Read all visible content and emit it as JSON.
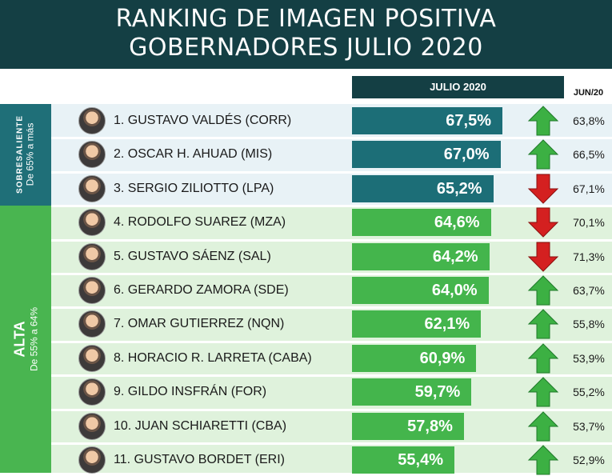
{
  "header": {
    "title_line1": "RANKING DE IMAGEN POSITIVA",
    "title_line2": "GOBERNADORES JULIO 2020"
  },
  "columns": {
    "current": "JULIO 2020",
    "previous": "JUN/20"
  },
  "groups": [
    {
      "label": "SOBRESALIENTE",
      "range": "De 65% a más",
      "color": "#1f6f78"
    },
    {
      "label": "ALTA",
      "range": "De 55% a 64%",
      "color": "#49b550"
    }
  ],
  "colors": {
    "up": "#3cb043",
    "down": "#d42020",
    "header": "#143f44"
  },
  "chart_data": {
    "type": "bar",
    "title": "RANKING DE IMAGEN POSITIVA GOBERNADORES JULIO 2020",
    "xlabel": "",
    "ylabel": "",
    "ylim": [
      0,
      70
    ],
    "categories": [
      "1. GUSTAVO VALDÉS  (CORR)",
      "2. OSCAR H. AHUAD  (MIS)",
      "3. SERGIO ZILIOTTO (LPA)",
      "4. RODOLFO SUAREZ (MZA)",
      "5. GUSTAVO SÁENZ (SAL)",
      "6. GERARDO ZAMORA (SDE)",
      "7. OMAR GUTIERREZ (NQN)",
      "8. HORACIO R. LARRETA (CABA)",
      "9. GILDO INSFRÁN (FOR)",
      "10. JUAN SCHIARETTI (CBA)",
      "11. GUSTAVO BORDET (ERI)"
    ],
    "series": [
      {
        "name": "JULIO 2020",
        "values": [
          67.5,
          67.0,
          65.2,
          64.6,
          64.2,
          64.0,
          62.1,
          60.9,
          59.7,
          57.8,
          55.4
        ],
        "labels": [
          "67,5%",
          "67,0%",
          "65,2%",
          "64,6%",
          "64,2%",
          "64,0%",
          "62,1%",
          "60,9%",
          "59,7%",
          "57,8%",
          "55,4%"
        ]
      },
      {
        "name": "JUN/20",
        "values": [
          63.8,
          66.5,
          67.1,
          70.1,
          71.3,
          63.7,
          55.8,
          53.9,
          55.2,
          53.7,
          52.9
        ],
        "labels": [
          "63,8%",
          "66,5%",
          "67,1%",
          "70,1%",
          "71,3%",
          "63,7%",
          "55,8%",
          "53,9%",
          "55,2%",
          "53,7%",
          "52,9%"
        ]
      }
    ],
    "trend": [
      "up",
      "up",
      "down",
      "down",
      "down",
      "up",
      "up",
      "up",
      "up",
      "up",
      "up"
    ],
    "group_index": [
      0,
      0,
      0,
      1,
      1,
      1,
      1,
      1,
      1,
      1,
      1
    ]
  }
}
